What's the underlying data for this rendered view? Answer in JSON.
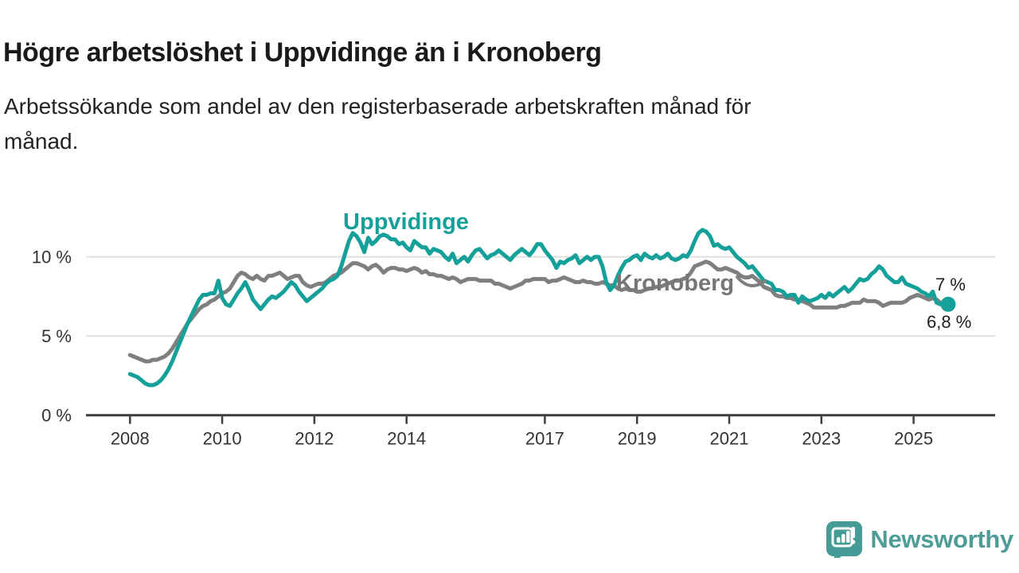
{
  "header": {
    "title": "Högre arbetslöshet i Uppvidinge än i Kronoberg",
    "subtitle_lines": [
      "Arbetssökande som andel av den registerbaserade arbetskraften månad för",
      "månad."
    ]
  },
  "chart_data": {
    "type": "line",
    "unit": "%",
    "x_unit": "month",
    "start": "2008-01",
    "end": "2025-10",
    "grid": "horizontal",
    "ylim": [
      0,
      12
    ],
    "xlim_years": [
      2008.0,
      2025.9
    ],
    "yticks": [
      {
        "value": 0,
        "label": "0 %"
      },
      {
        "value": 5,
        "label": "5 %"
      },
      {
        "value": 10,
        "label": "10 %"
      }
    ],
    "xticks": [
      2008,
      2010,
      2012,
      2014,
      2017,
      2019,
      2021,
      2023,
      2025
    ],
    "series": [
      {
        "name": "Uppvidinge",
        "color": "#16A09A",
        "end_value_label": "7 %",
        "values": [
          2.6,
          2.5,
          2.4,
          2.2,
          2.0,
          1.9,
          1.9,
          2.0,
          2.2,
          2.5,
          2.9,
          3.4,
          4.0,
          4.6,
          5.2,
          5.8,
          6.3,
          6.8,
          7.3,
          7.6,
          7.6,
          7.7,
          7.7,
          8.5,
          7.4,
          7.0,
          6.9,
          7.3,
          7.7,
          8.0,
          8.4,
          7.9,
          7.3,
          7.0,
          6.7,
          7.0,
          7.3,
          7.5,
          7.4,
          7.6,
          7.8,
          8.1,
          8.4,
          8.2,
          7.8,
          7.5,
          7.2,
          7.4,
          7.6,
          7.8,
          8.0,
          8.3,
          8.5,
          8.6,
          8.8,
          9.4,
          10.2,
          11.0,
          11.5,
          11.3,
          10.9,
          10.3,
          11.2,
          10.8,
          11.0,
          11.3,
          11.4,
          11.3,
          11.1,
          11.1,
          10.8,
          10.9,
          10.6,
          10.4,
          11.0,
          10.8,
          10.6,
          10.6,
          10.2,
          10.5,
          10.4,
          10.3,
          10.0,
          9.8,
          10.2,
          9.6,
          9.8,
          10.0,
          9.7,
          10.1,
          10.4,
          10.5,
          10.2,
          9.9,
          10.1,
          10.2,
          10.4,
          10.2,
          10.0,
          9.8,
          10.1,
          10.3,
          10.5,
          10.3,
          10.1,
          10.4,
          10.8,
          10.8,
          10.4,
          10.1,
          9.8,
          9.3,
          9.7,
          9.6,
          9.8,
          9.9,
          10.1,
          9.6,
          9.8,
          10.0,
          9.8,
          10.0,
          10.0,
          9.4,
          8.4,
          7.9,
          8.2,
          8.8,
          9.3,
          9.7,
          9.8,
          10.0,
          10.1,
          9.8,
          10.2,
          10.0,
          9.9,
          10.1,
          9.9,
          10.0,
          10.2,
          9.9,
          9.8,
          9.9,
          10.1,
          10.0,
          10.4,
          11.0,
          11.5,
          11.7,
          11.6,
          11.3,
          10.7,
          10.8,
          10.6,
          10.5,
          10.6,
          10.3,
          10.0,
          9.8,
          9.6,
          9.3,
          9.4,
          9.1,
          8.8,
          8.5,
          8.4,
          8.3,
          7.9,
          7.9,
          7.8,
          7.5,
          7.6,
          7.6,
          7.1,
          7.5,
          7.3,
          7.2,
          7.3,
          7.4,
          7.6,
          7.4,
          7.7,
          7.5,
          7.7,
          7.9,
          8.1,
          7.8,
          8.0,
          8.3,
          8.6,
          8.5,
          8.6,
          8.9,
          9.1,
          9.4,
          9.2,
          8.8,
          8.6,
          8.4,
          8.4,
          8.7,
          8.3,
          8.2,
          8.1,
          8.0,
          7.8,
          7.7,
          7.5,
          7.8,
          7.1,
          7.0,
          7.1,
          7.0
        ]
      },
      {
        "name": "Kronoberg",
        "color": "#7F7F7F",
        "end_value_label": "6,8 %",
        "values": [
          3.8,
          3.7,
          3.6,
          3.5,
          3.4,
          3.4,
          3.5,
          3.5,
          3.6,
          3.7,
          3.9,
          4.2,
          4.6,
          5.0,
          5.4,
          5.8,
          6.1,
          6.4,
          6.7,
          6.9,
          7.0,
          7.2,
          7.3,
          7.5,
          7.7,
          7.8,
          8.0,
          8.4,
          8.8,
          9.0,
          8.9,
          8.7,
          8.6,
          8.8,
          8.6,
          8.5,
          8.8,
          8.8,
          8.9,
          9.0,
          8.8,
          8.6,
          8.7,
          8.8,
          8.8,
          8.4,
          8.2,
          8.1,
          8.2,
          8.3,
          8.3,
          8.4,
          8.6,
          8.8,
          8.9,
          9.0,
          9.2,
          9.4,
          9.6,
          9.6,
          9.5,
          9.4,
          9.2,
          9.4,
          9.5,
          9.3,
          9.0,
          9.2,
          9.3,
          9.3,
          9.2,
          9.2,
          9.1,
          9.2,
          9.3,
          9.2,
          9.0,
          9.1,
          8.9,
          8.9,
          8.8,
          8.8,
          8.7,
          8.6,
          8.7,
          8.6,
          8.4,
          8.5,
          8.6,
          8.6,
          8.6,
          8.5,
          8.5,
          8.5,
          8.5,
          8.3,
          8.3,
          8.2,
          8.1,
          8.0,
          8.1,
          8.2,
          8.3,
          8.5,
          8.5,
          8.6,
          8.6,
          8.6,
          8.6,
          8.4,
          8.5,
          8.5,
          8.6,
          8.7,
          8.6,
          8.5,
          8.4,
          8.4,
          8.5,
          8.4,
          8.4,
          8.3,
          8.3,
          8.4,
          8.3,
          8.2,
          8.2,
          8.0,
          7.9,
          8.0,
          7.9,
          7.9,
          7.8,
          7.8,
          7.9,
          8.0,
          8.0,
          8.1,
          8.1,
          8.2,
          8.3,
          8.4,
          8.5,
          8.5,
          8.6,
          8.7,
          9.0,
          9.4,
          9.5,
          9.6,
          9.7,
          9.6,
          9.4,
          9.2,
          9.2,
          9.3,
          9.2,
          9.1,
          9.0,
          8.8,
          8.7,
          8.7,
          8.8,
          8.6,
          8.4,
          8.1,
          8.0,
          7.9,
          7.6,
          7.5,
          7.5,
          7.4,
          7.4,
          7.3,
          7.3,
          7.2,
          7.1,
          7.0,
          6.8,
          6.8,
          6.8,
          6.8,
          6.8,
          6.8,
          6.8,
          6.9,
          6.9,
          7.0,
          7.1,
          7.1,
          7.1,
          7.3,
          7.2,
          7.2,
          7.2,
          7.1,
          6.9,
          7.0,
          7.1,
          7.1,
          7.1,
          7.1,
          7.2,
          7.4,
          7.5,
          7.6,
          7.5,
          7.4,
          7.3,
          7.4,
          7.3,
          7.1,
          7.0,
          6.8
        ]
      }
    ],
    "colors": {
      "grid": "#E0E0E0",
      "axis": "#3D3D3D",
      "tick_label": "#333333",
      "end_label": "#1f1f1f"
    }
  },
  "branding": {
    "logo_text": "Newsworthy",
    "logo_color": "#4E9C98"
  }
}
